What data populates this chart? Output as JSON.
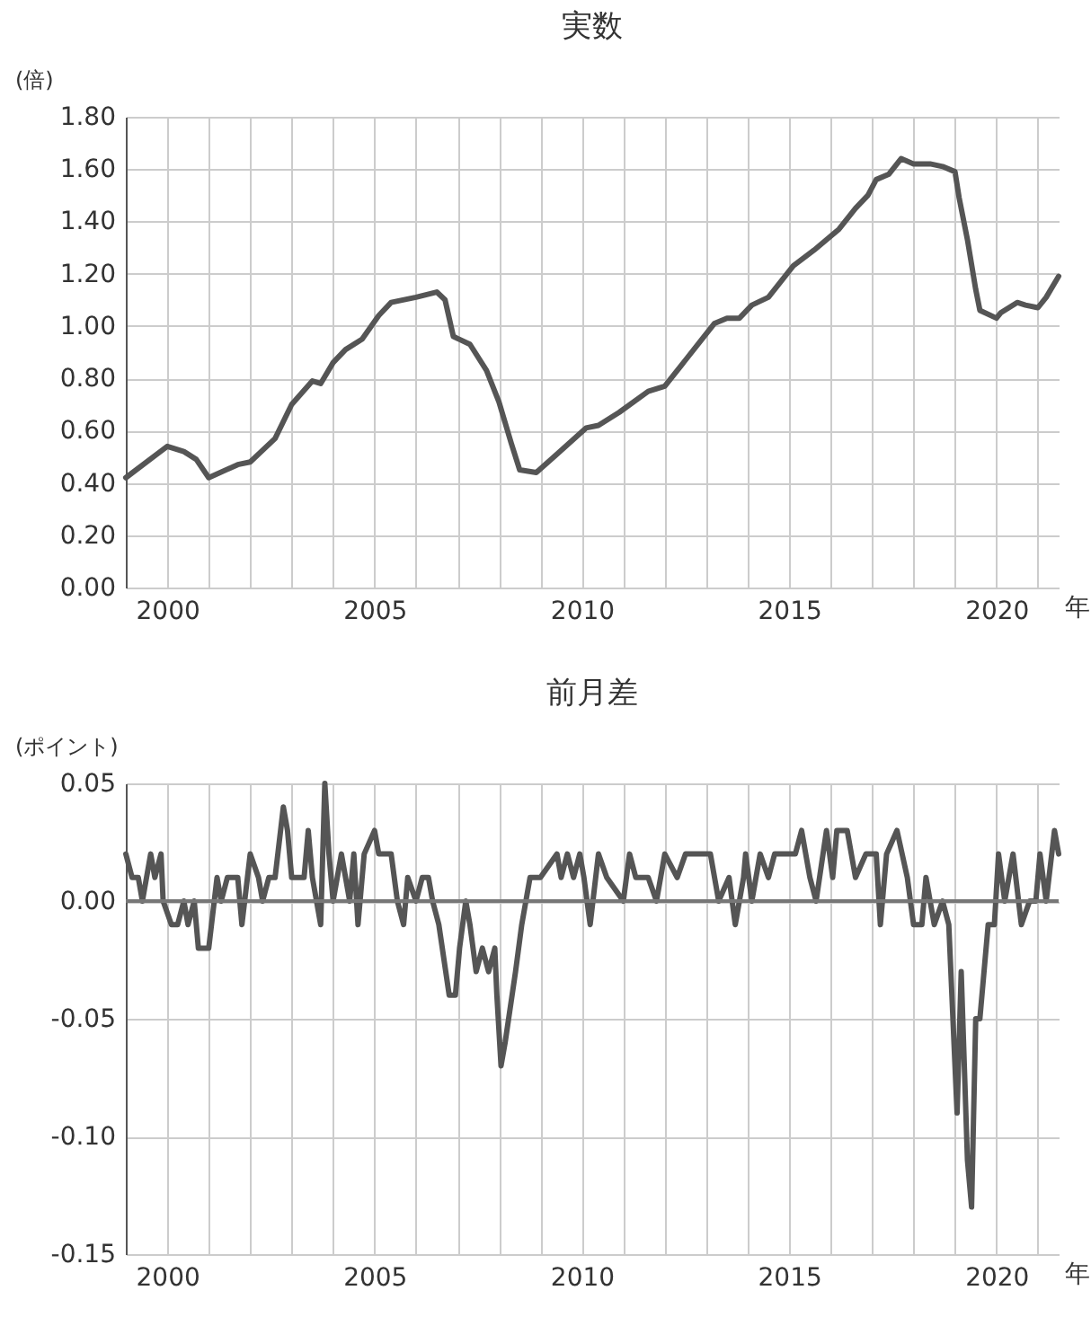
{
  "chart_data": [
    {
      "type": "line",
      "title": "実数",
      "ylabel": "(倍)",
      "xlabel": "年",
      "grid": true,
      "line_style": "solid",
      "marker": "none",
      "xlim": [
        1999,
        2021.5
      ],
      "xticks": [
        2000,
        {
          "value": 2001,
          "label": null
        },
        {
          "value": 2002,
          "label": null
        },
        {
          "value": 2003,
          "label": null
        },
        {
          "value": 2004,
          "label": null
        },
        2005,
        {
          "value": 2006,
          "label": null
        },
        {
          "value": 2007,
          "label": null
        },
        {
          "value": 2008,
          "label": null
        },
        {
          "value": 2009,
          "label": null
        },
        2010,
        {
          "value": 2011,
          "label": null
        },
        {
          "value": 2012,
          "label": null
        },
        {
          "value": 2013,
          "label": null
        },
        {
          "value": 2014,
          "label": null
        },
        2015,
        {
          "value": 2016,
          "label": null
        },
        {
          "value": 2017,
          "label": null
        },
        {
          "value": 2018,
          "label": null
        },
        {
          "value": 2019,
          "label": null
        },
        2020,
        {
          "value": 2021,
          "label": null
        }
      ],
      "ylim": [
        0,
        1.8
      ],
      "yticks": [
        {
          "value": 0,
          "label": "0.00"
        },
        {
          "value": 0.2,
          "label": "0.20"
        },
        {
          "value": 0.4,
          "label": "0.40"
        },
        {
          "value": 0.6,
          "label": "0.60"
        },
        {
          "value": 0.8,
          "label": "0.80"
        },
        {
          "value": 1,
          "label": "1.00"
        },
        {
          "value": 1.2,
          "label": "1.20"
        },
        {
          "value": 1.4,
          "label": "1.40"
        },
        {
          "value": 1.6,
          "label": "1.60"
        },
        {
          "value": 1.8,
          "label": "1.80"
        }
      ],
      "x": [
        1999,
        2000,
        2000.4,
        2000.7,
        2001,
        2001.7,
        2002,
        2002.6,
        2003,
        2003.5,
        2003.7,
        2004,
        2004.3,
        2004.7,
        2005.1,
        2005.4,
        2006,
        2006.5,
        2006.7,
        2006.9,
        2007.3,
        2007.7,
        2008,
        2008.3,
        2008.5,
        2008.9,
        2009.4,
        2010.1,
        2010.4,
        2010.9,
        2011.6,
        2012,
        2012.4,
        2012.9,
        2013.2,
        2013.5,
        2013.8,
        2014.1,
        2014.5,
        2015.1,
        2015.6,
        2016.2,
        2016.6,
        2016.9,
        2017.1,
        2017.4,
        2017.7,
        2018,
        2018.4,
        2018.7,
        2019,
        2019.1,
        2019.3,
        2019.5,
        2019.6,
        2020,
        2020.1,
        2020.5,
        2020.7,
        2021,
        2021.2,
        2021.5
      ],
      "series": [
        {
          "color": "#555555",
          "values": [
            0.42,
            0.54,
            0.52,
            0.49,
            0.42,
            0.47,
            0.48,
            0.57,
            0.7,
            0.79,
            0.78,
            0.86,
            0.91,
            0.95,
            1.04,
            1.09,
            1.11,
            1.13,
            1.1,
            0.96,
            0.93,
            0.83,
            0.71,
            0.55,
            0.45,
            0.44,
            0.51,
            0.61,
            0.62,
            0.67,
            0.75,
            0.77,
            0.85,
            0.95,
            1.01,
            1.03,
            1.03,
            1.08,
            1.11,
            1.23,
            1.29,
            1.37,
            1.45,
            1.5,
            1.56,
            1.58,
            1.64,
            1.62,
            1.62,
            1.61,
            1.59,
            1.49,
            1.33,
            1.14,
            1.06,
            1.03,
            1.05,
            1.09,
            1.08,
            1.07,
            1.11,
            1.19
          ]
        }
      ]
    },
    {
      "type": "line",
      "title": "前月差",
      "ylabel": "(ポイント)",
      "xlabel": "年",
      "grid": true,
      "line_style": "solid",
      "marker": "none",
      "xlim": [
        1999,
        2021.5
      ],
      "xticks": [
        2000,
        {
          "value": 2001,
          "label": null
        },
        {
          "value": 2002,
          "label": null
        },
        {
          "value": 2003,
          "label": null
        },
        {
          "value": 2004,
          "label": null
        },
        2005,
        {
          "value": 2006,
          "label": null
        },
        {
          "value": 2007,
          "label": null
        },
        {
          "value": 2008,
          "label": null
        },
        {
          "value": 2009,
          "label": null
        },
        2010,
        {
          "value": 2011,
          "label": null
        },
        {
          "value": 2012,
          "label": null
        },
        {
          "value": 2013,
          "label": null
        },
        {
          "value": 2014,
          "label": null
        },
        2015,
        {
          "value": 2016,
          "label": null
        },
        {
          "value": 2017,
          "label": null
        },
        {
          "value": 2018,
          "label": null
        },
        {
          "value": 2019,
          "label": null
        },
        2020,
        {
          "value": 2021,
          "label": null
        }
      ],
      "ylim": [
        -0.15,
        0.05
      ],
      "yticks": [
        {
          "value": -0.15,
          "label": "-0.15"
        },
        {
          "value": -0.1,
          "label": "-0.10"
        },
        {
          "value": -0.05,
          "label": "-0.05"
        },
        {
          "value": 0,
          "label": "0.00"
        },
        {
          "value": 0.05,
          "label": "0.05"
        }
      ],
      "ref_lines": [
        {
          "axis": "y",
          "value": 0,
          "color": "#777777"
        }
      ],
      "x": [
        1999,
        1999.15,
        1999.3,
        1999.4,
        1999.6,
        1999.7,
        1999.85,
        1999.9,
        2000.1,
        2000.25,
        2000.4,
        2000.5,
        2000.65,
        2000.75,
        2001,
        2001.2,
        2001.3,
        2001.45,
        2001.7,
        2001.8,
        2002,
        2002.2,
        2002.3,
        2002.45,
        2002.6,
        2002.8,
        2002.9,
        2003,
        2003.3,
        2003.4,
        2003.5,
        2003.7,
        2003.8,
        2003.9,
        2004,
        2004.2,
        2004.4,
        2004.5,
        2004.6,
        2004.75,
        2005,
        2005.1,
        2005.4,
        2005.55,
        2005.7,
        2005.8,
        2006,
        2006.15,
        2006.3,
        2006.4,
        2006.55,
        2006.8,
        2006.95,
        2007.05,
        2007.2,
        2007.3,
        2007.45,
        2007.6,
        2007.75,
        2007.9,
        2007.95,
        2008.05,
        2008.15,
        2008.4,
        2008.55,
        2008.65,
        2008.75,
        2009,
        2009.4,
        2009.5,
        2009.65,
        2009.8,
        2009.95,
        2010.05,
        2010.2,
        2010.4,
        2010.6,
        2011,
        2011.15,
        2011.3,
        2011.6,
        2011.8,
        2012,
        2012.3,
        2012.5,
        2012.95,
        2013.1,
        2013.3,
        2013.55,
        2013.7,
        2013.9,
        2013.95,
        2014.1,
        2014.3,
        2014.5,
        2014.65,
        2014.9,
        2015.15,
        2015.3,
        2015.5,
        2015.65,
        2015.9,
        2016.05,
        2016.15,
        2016.4,
        2016.6,
        2016.85,
        2017.1,
        2017.2,
        2017.35,
        2017.6,
        2017.85,
        2018,
        2018.2,
        2018.3,
        2018.5,
        2018.7,
        2018.85,
        2019.05,
        2019.15,
        2019.3,
        2019.4,
        2019.5,
        2019.6,
        2019.8,
        2019.95,
        2020.05,
        2020.2,
        2020.4,
        2020.6,
        2020.8,
        2020.95,
        2021.05,
        2021.2,
        2021.4,
        2021.5
      ],
      "series": [
        {
          "color": "#555555",
          "values": [
            0.02,
            0.01,
            0.01,
            0,
            0.02,
            0.01,
            0.02,
            0,
            -0.01,
            -0.01,
            0,
            -0.01,
            0,
            -0.02,
            -0.02,
            0.01,
            0,
            0.01,
            0.01,
            -0.01,
            0.02,
            0.01,
            0,
            0.01,
            0.01,
            0.04,
            0.03,
            0.01,
            0.01,
            0.03,
            0.01,
            -0.01,
            0.05,
            0.02,
            0,
            0.02,
            0,
            0.02,
            -0.01,
            0.02,
            0.03,
            0.02,
            0.02,
            0,
            -0.01,
            0.01,
            0,
            0.01,
            0.01,
            0,
            -0.01,
            -0.04,
            -0.04,
            -0.02,
            0,
            -0.01,
            -0.03,
            -0.02,
            -0.03,
            -0.02,
            -0.04,
            -0.07,
            -0.06,
            -0.03,
            -0.01,
            0,
            0.01,
            0.01,
            0.02,
            0.01,
            0.02,
            0.01,
            0.02,
            0.01,
            -0.01,
            0.02,
            0.01,
            0,
            0.02,
            0.01,
            0.01,
            0,
            0.02,
            0.01,
            0.02,
            0.02,
            0.02,
            0,
            0.01,
            -0.01,
            0.01,
            0.02,
            0,
            0.02,
            0.01,
            0.02,
            0.02,
            0.02,
            0.03,
            0.01,
            0,
            0.03,
            0.01,
            0.03,
            0.03,
            0.01,
            0.02,
            0.02,
            -0.01,
            0.02,
            0.03,
            0.01,
            -0.01,
            -0.01,
            0.01,
            -0.01,
            0,
            -0.01,
            -0.09,
            -0.03,
            -0.11,
            -0.13,
            -0.05,
            -0.05,
            -0.01,
            -0.01,
            0.02,
            0,
            0.02,
            -0.01,
            0,
            0,
            0.02,
            0,
            0.03,
            0.02
          ]
        }
      ]
    }
  ]
}
